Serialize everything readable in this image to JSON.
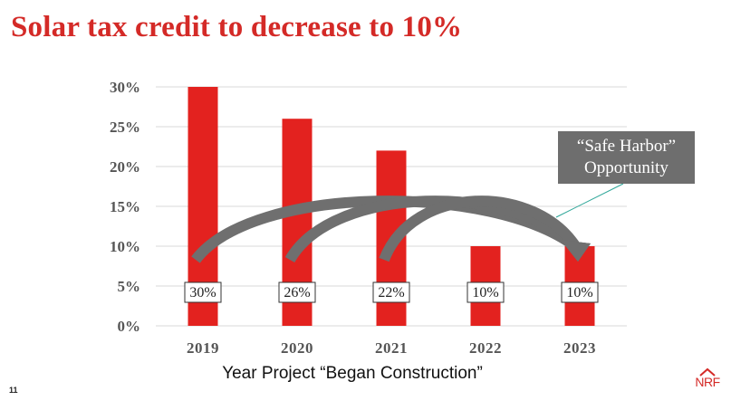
{
  "slide": {
    "title": "Solar tax credit to decrease to 10%",
    "page_number": "11"
  },
  "callout": {
    "line1": "“Safe Harbor”",
    "line2": "Opportunity"
  },
  "logo": {
    "text": "NRF"
  },
  "colors": {
    "title": "#d42a27",
    "bar": "#e3221f",
    "arrow": "#6f6f6f",
    "callout_bg": "#6e6e6e",
    "leader_line": "#2aa597",
    "gridline": "#d9d9d9"
  },
  "chart_data": {
    "type": "bar",
    "title": "Solar tax credit to decrease to 10%",
    "categories": [
      "2019",
      "2020",
      "2021",
      "2022",
      "2023"
    ],
    "values": [
      30,
      26,
      22,
      10,
      10
    ],
    "value_labels": [
      "30%",
      "26%",
      "22%",
      "10%",
      "10%"
    ],
    "ylim": [
      0,
      30
    ],
    "yticks": [
      0,
      5,
      10,
      15,
      20,
      25,
      30
    ],
    "ytick_labels": [
      "0%",
      "5%",
      "10%",
      "15%",
      "20%",
      "25%",
      "30%"
    ],
    "xlabel": "Year  Project “Began Construction”",
    "ylabel": "",
    "grid": true,
    "annotations": [
      {
        "type": "arrow",
        "from": "2019",
        "to": "2023"
      },
      {
        "type": "arrow",
        "from": "2020",
        "to": "2023"
      },
      {
        "type": "arrow",
        "from": "2021",
        "to": "2023"
      }
    ]
  }
}
